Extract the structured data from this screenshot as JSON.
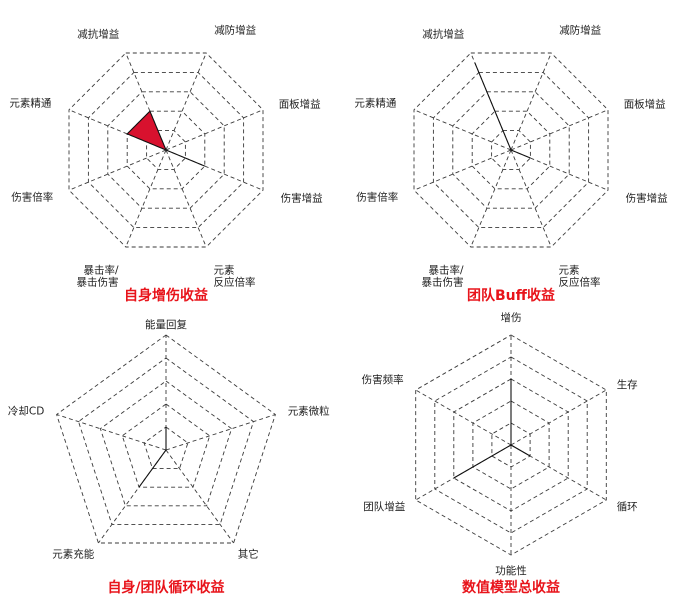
{
  "chart_data": [
    {
      "type": "radar",
      "title": "自身增伤收益",
      "axes": [
        "减抗增益",
        "减防增益",
        "面板增益",
        "伤害增益",
        "元素反应倍率",
        "暴击率/暴击伤害",
        "伤害倍率",
        "元素精通"
      ],
      "axis_label_lines": [
        [
          "减抗增益"
        ],
        [
          "减防增益"
        ],
        [
          "面板增益"
        ],
        [
          "伤害增益"
        ],
        [
          "元素",
          "反应倍率"
        ],
        [
          "暴击率/",
          "暴击伤害"
        ],
        [
          "伤害倍率"
        ],
        [
          "元素精通"
        ]
      ],
      "rings": 5,
      "range": [
        0,
        5
      ],
      "values": [
        2,
        0,
        0,
        2,
        0,
        0,
        0,
        2
      ],
      "color": "#d8112e"
    },
    {
      "type": "radar",
      "title": "团队Buff收益",
      "axes": [
        "减抗增益",
        "减防增益",
        "面板增益",
        "伤害增益",
        "元素反应倍率",
        "暴击率/暴击伤害",
        "伤害倍率",
        "元素精通"
      ],
      "axis_label_lines": [
        [
          "减抗增益"
        ],
        [
          "减防增益"
        ],
        [
          "面板增益"
        ],
        [
          "伤害增益"
        ],
        [
          "元素",
          "反应倍率"
        ],
        [
          "暴击率/",
          "暴击伤害"
        ],
        [
          "伤害倍率"
        ],
        [
          "元素精通"
        ]
      ],
      "rings": 5,
      "range": [
        0,
        5
      ],
      "values": [
        4.5,
        0,
        0,
        1,
        0,
        0,
        0,
        0
      ],
      "color": "#f9b44a"
    },
    {
      "type": "radar",
      "title": "自身/团队循环收益",
      "axes": [
        "能量回复",
        "元素微粒",
        "其它",
        "元素充能",
        "冷却CD"
      ],
      "axis_label_lines": [
        [
          "能量回复"
        ],
        [
          "元素微粒"
        ],
        [
          "其它"
        ],
        [
          "元素充能"
        ],
        [
          "冷却CD"
        ]
      ],
      "rings": 5,
      "range": [
        0,
        5
      ],
      "values": [
        1,
        0,
        0,
        2,
        0
      ],
      "color": "#4f83d9"
    },
    {
      "type": "radar",
      "title": "数值模型总收益",
      "axes": [
        "增伤",
        "生存",
        "循环",
        "功能性",
        "团队增益",
        "伤害频率"
      ],
      "axis_label_lines": [
        [
          "增伤"
        ],
        [
          "生存"
        ],
        [
          "循环"
        ],
        [
          "功能性"
        ],
        [
          "团队增益"
        ],
        [
          "伤害频率"
        ]
      ],
      "rings": 5,
      "range": [
        0,
        5
      ],
      "values": [
        3,
        0,
        1,
        0,
        3,
        0
      ],
      "color": "#a8a8a8"
    }
  ]
}
